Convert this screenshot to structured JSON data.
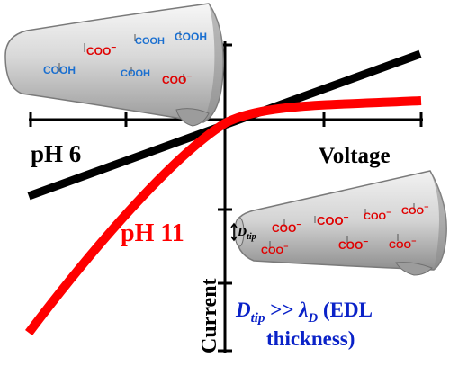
{
  "colors": {
    "ph6_curve": "#000000",
    "ph11_curve": "#ff0000",
    "axis": "#000000",
    "carboxyl_protonated": "#1a6fd0",
    "carboxylate": "#e00000",
    "dtip_label": "#0a22c8",
    "cone_fill": "#cfcfcf"
  },
  "labels": {
    "ph6": "pH 6",
    "ph11": "pH 11",
    "voltage": "Voltage",
    "current": "Current",
    "dtip": "D",
    "dtip_sub": "tip",
    "relation_lhs": "D",
    "relation_lhs_sub": "tip",
    "relation_op": " >> ",
    "relation_rhs": "λ",
    "relation_rhs_sub": "D",
    "relation_paren": " (EDL",
    "relation_line2": "thickness)"
  },
  "chemistry": {
    "protonated": "COOH",
    "deprotonated": "COO",
    "charge": "−"
  },
  "icons": {
    "left_cone": "conical-nanopipette-icon",
    "right_cone": "conical-nanopipette-icon",
    "dtip_arrow": "double-headed-arrow-icon"
  },
  "chart_data": {
    "type": "line",
    "xlabel": "Voltage",
    "ylabel": "Current",
    "series": [
      {
        "name": "pH 6",
        "shape": "linear"
      },
      {
        "name": "pH 11",
        "shape": "rectifying"
      }
    ]
  }
}
